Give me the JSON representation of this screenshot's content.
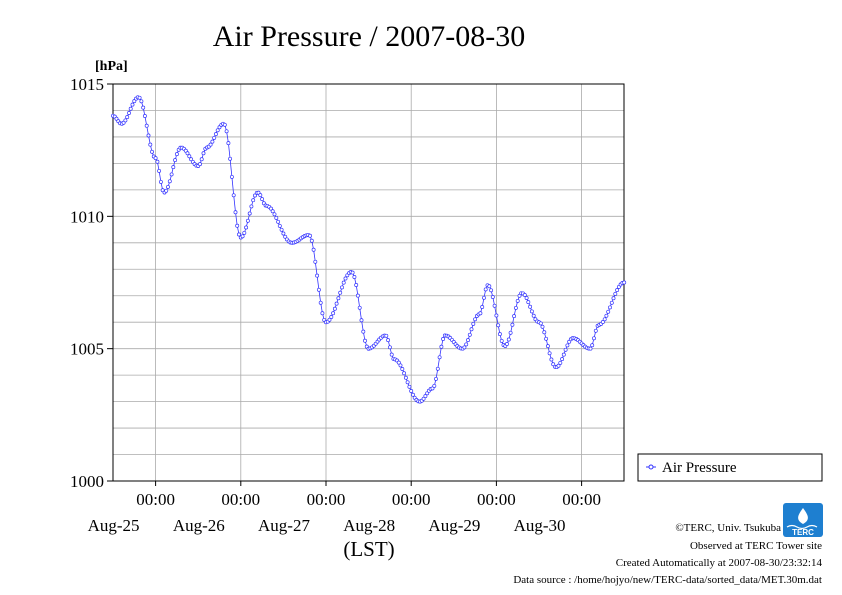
{
  "chart_data": {
    "type": "line",
    "title": "Air Pressure / 2007-08-30",
    "ylabel_unit": "[hPa]",
    "xlabel": "(LST)",
    "ylim": [
      1000,
      1015
    ],
    "y_ticks": [
      1000,
      1005,
      1010,
      1015
    ],
    "y_tick_labels": [
      "1000",
      "1005",
      "1010",
      "1015"
    ],
    "y_minor_step": 1,
    "x_range_days": [
      "Aug-24 12:00",
      "Aug-30 24:00"
    ],
    "x_ticks": [
      {
        "time_label": "00:00",
        "date_label": "Aug-25"
      },
      {
        "time_label": "00:00",
        "date_label": "Aug-26"
      },
      {
        "time_label": "00:00",
        "date_label": "Aug-27"
      },
      {
        "time_label": "00:00",
        "date_label": "Aug-28"
      },
      {
        "time_label": "00:00",
        "date_label": "Aug-29"
      },
      {
        "time_label": "00:00",
        "date_label": "Aug-30"
      }
    ],
    "grid": true,
    "legend_position": "right",
    "series": [
      {
        "name": "Air Pressure",
        "color": "#3333ff",
        "marker": "circle",
        "anchors_x_days_since_aug24_1200": [
          0.0,
          0.1,
          0.3,
          0.5,
          0.6,
          0.8,
          1.0,
          1.1,
          1.3,
          1.5,
          1.7,
          1.8,
          2.1,
          2.3,
          2.5,
          2.8,
          3.0,
          3.2,
          3.3,
          3.6,
          3.75,
          3.9,
          4.1,
          4.3,
          4.4,
          4.6,
          4.8,
          5.0,
          5.2,
          5.4,
          5.6,
          5.7,
          6.0
        ],
        "anchors_y": [
          1013.8,
          1013.5,
          1014.5,
          1012.2,
          1010.9,
          1012.6,
          1011.9,
          1012.6,
          1013.5,
          1009.2,
          1010.9,
          1010.4,
          1009.0,
          1009.3,
          1006.0,
          1007.9,
          1005.0,
          1005.5,
          1004.6,
          1003.0,
          1003.5,
          1005.5,
          1005.0,
          1006.3,
          1007.4,
          1005.1,
          1007.1,
          1006.0,
          1004.3,
          1005.4,
          1005.0,
          1005.9,
          1007.5
        ],
        "sample_step_days": 0.020833
      }
    ]
  },
  "credits": {
    "copyright": "©TERC, Univ. Tsukuba",
    "observed": "Observed at TERC Tower site",
    "created": "Created Automatically at 2007-08-30/23:32:14",
    "source": "Data source : /home/hojyo/new/TERC-data/sorted_data/MET.30m.dat"
  },
  "logo": {
    "text": "TERC",
    "color": "#1e7fd0",
    "icon_name": "terc-logo"
  }
}
